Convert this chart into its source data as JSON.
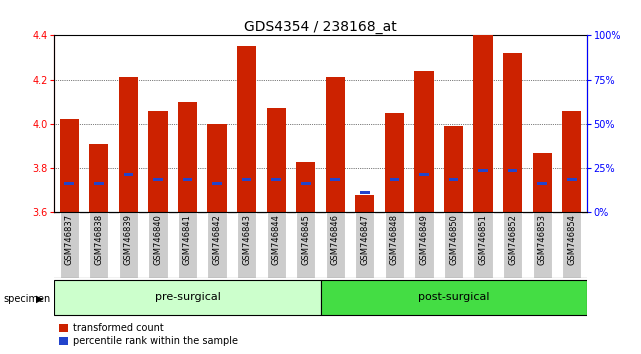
{
  "title": "GDS4354 / 238168_at",
  "samples": [
    "GSM746837",
    "GSM746838",
    "GSM746839",
    "GSM746840",
    "GSM746841",
    "GSM746842",
    "GSM746843",
    "GSM746844",
    "GSM746845",
    "GSM746846",
    "GSM746847",
    "GSM746848",
    "GSM746849",
    "GSM746850",
    "GSM746851",
    "GSM746852",
    "GSM746853",
    "GSM746854"
  ],
  "bar_values": [
    4.02,
    3.91,
    4.21,
    4.06,
    4.1,
    4.0,
    4.35,
    4.07,
    3.83,
    4.21,
    3.68,
    4.05,
    4.24,
    3.99,
    4.4,
    4.32,
    3.87,
    4.06
  ],
  "percentile_values": [
    3.73,
    3.73,
    3.77,
    3.75,
    3.75,
    3.73,
    3.75,
    3.75,
    3.73,
    3.75,
    3.69,
    3.75,
    3.77,
    3.75,
    3.79,
    3.79,
    3.73,
    3.75
  ],
  "ymin": 3.6,
  "ymax": 4.4,
  "y_ticks": [
    3.6,
    3.8,
    4.0,
    4.2,
    4.4
  ],
  "right_y_ticks": [
    0,
    25,
    50,
    75,
    100
  ],
  "right_y_labels": [
    "0%",
    "25%",
    "50%",
    "75%",
    "100%"
  ],
  "bar_color": "#cc2200",
  "percentile_color": "#2244cc",
  "pre_surgical_count": 9,
  "post_surgical_count": 9,
  "group_labels": [
    "pre-surgical",
    "post-surgical"
  ],
  "group_bg_light": "#ccffcc",
  "group_bg_dark": "#44dd44",
  "specimen_label": "specimen",
  "legend_entries": [
    "transformed count",
    "percentile rank within the sample"
  ],
  "background_color": "#ffffff",
  "title_fontsize": 10,
  "tick_fontsize": 7,
  "xtick_fontsize": 6,
  "group_fontsize": 8,
  "legend_fontsize": 7
}
